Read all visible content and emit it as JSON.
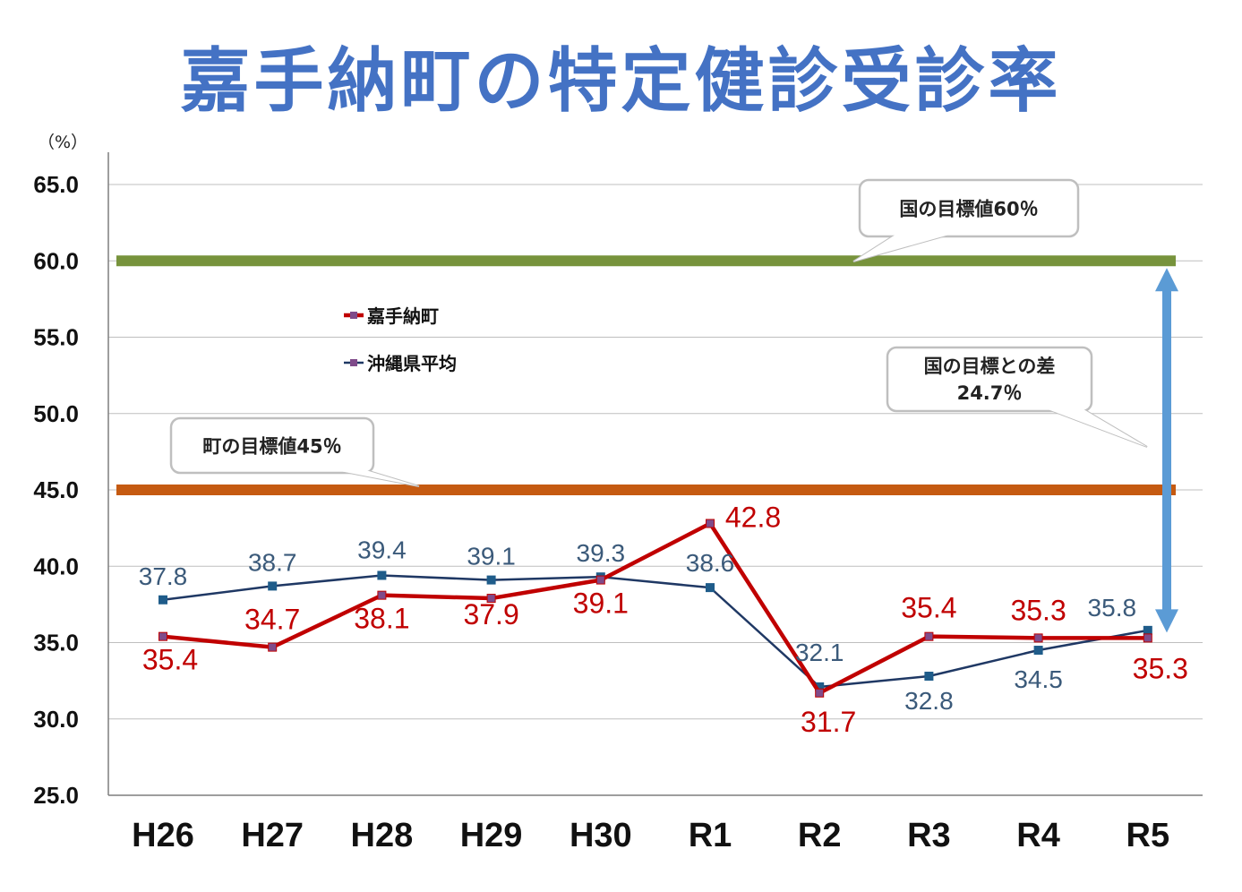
{
  "title": "嘉手納町の特定健診受診率",
  "unit": "（%）",
  "colors": {
    "title": "#4472c4",
    "kadena": "#c00000",
    "okinawa": "#1f3864",
    "okinawa_label": "#3b5a7a",
    "national_target": "#77933c",
    "town_target": "#c55a11",
    "arrow": "#5b9bd5",
    "grid": "#bfbfbf"
  },
  "chart_data": {
    "type": "line",
    "title": "嘉手納町の特定健診受診率",
    "ylabel": "（%）",
    "categories": [
      "H26",
      "H27",
      "H28",
      "H29",
      "H30",
      "R1",
      "R2",
      "R3",
      "R4",
      "R5"
    ],
    "y_ticks": [
      "65.0",
      "60.0",
      "55.0",
      "50.0",
      "45.0",
      "40.0",
      "35.0",
      "30.0",
      "25.0"
    ],
    "ylim": [
      25,
      65
    ],
    "grid": true,
    "legend_position": "upper-left",
    "series": [
      {
        "name": "嘉手納町",
        "values": [
          35.4,
          34.7,
          38.1,
          37.9,
          39.1,
          42.8,
          31.7,
          35.4,
          35.3,
          35.3
        ],
        "labels": [
          "35.4",
          "34.7",
          "38.1",
          "37.9",
          "39.1",
          "42.8",
          "31.7",
          "35.4",
          "35.3",
          "35.3"
        ]
      },
      {
        "name": "沖縄県平均",
        "values": [
          37.8,
          38.7,
          39.4,
          39.1,
          39.3,
          38.6,
          32.1,
          32.8,
          34.5,
          35.8
        ],
        "labels": [
          "37.8",
          "38.7",
          "39.4",
          "39.1",
          "39.3",
          "38.6",
          "32.1",
          "32.8",
          "34.5",
          "35.8"
        ]
      }
    ],
    "reference_lines": [
      {
        "value": 60,
        "label": "国の目標値60％"
      },
      {
        "value": 45,
        "label": "町の目標値45％"
      }
    ],
    "gap_annotation": {
      "line1": "国の目標との差",
      "line2": "24.7％",
      "from": 35.3,
      "to": 60
    }
  }
}
